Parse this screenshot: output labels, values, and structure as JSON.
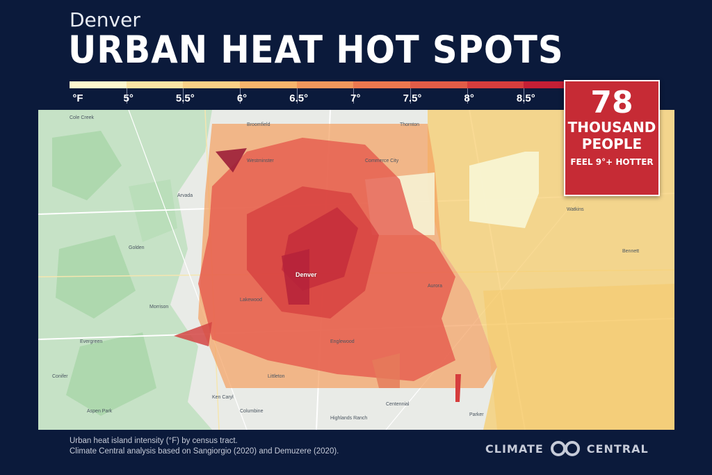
{
  "header": {
    "city": "Denver",
    "title": "URBAN HEAT HOT SPOTS"
  },
  "legend": {
    "unit_label": "°F",
    "ticks": [
      "5°",
      "5.5°",
      "6°",
      "6.5°",
      "7°",
      "7.5°",
      "8°",
      "8.5°"
    ],
    "colors": [
      "#fff6cf",
      "#fde3a4",
      "#fbcf86",
      "#f8b46c",
      "#f2975c",
      "#eb784f",
      "#e25c47",
      "#d63d3d",
      "#c41f35"
    ]
  },
  "callout": {
    "number": "78",
    "line1": "THOUSAND",
    "line2": "PEOPLE",
    "line3": "FEEL 9°+ HOTTER"
  },
  "map": {
    "city_label": "Denver",
    "places": [
      "Cole Creek",
      "Broomfield",
      "Westminster",
      "Arvada",
      "Golden",
      "Lakewood",
      "Englewood",
      "Littleton",
      "Centennial",
      "Aurora",
      "Commerce City",
      "Thornton",
      "Evergreen",
      "Morrison",
      "Columbine",
      "Ken Caryl",
      "Highlands Ranch",
      "Parker",
      "Watkins",
      "Bennett",
      "Aspen Park",
      "Conifer"
    ]
  },
  "footer": {
    "note_line1": "Urban heat island intensity (°F) by census tract.",
    "note_line2": "Climate Central analysis based on Sangiorgio (2020) and Demuzere (2020).",
    "brand_left": "CLIMATE",
    "brand_right": "CENTRAL"
  }
}
